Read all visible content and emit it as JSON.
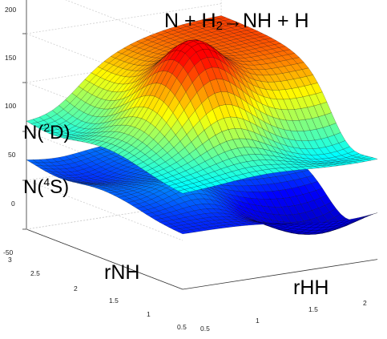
{
  "chart_data": {
    "type": "surface",
    "title": "N + H2→NH + H",
    "title_parts": {
      "reactant": "N + H",
      "sub": "2",
      "arrow_products": "→NH + H"
    },
    "surfaces": [
      {
        "label_base": "N(",
        "label_sup": "2",
        "label_state": "D)"
      },
      {
        "label_base": "N(",
        "label_sup": "4",
        "label_state": "S)"
      }
    ],
    "xlabel": "rNH",
    "ylabel": "rHH",
    "xlim": [
      0.5,
      3
    ],
    "ylim": [
      0.5,
      2.2
    ],
    "zlim": [
      -50,
      200
    ],
    "z_ticks": [
      "200",
      "150",
      "100",
      "50",
      "0",
      "-50"
    ],
    "x_ticks": [
      "3",
      "2.5",
      "2",
      "1.5",
      "1",
      "0.5"
    ],
    "y_ticks": [
      "0.5",
      "1",
      "1.5",
      "2"
    ],
    "colormap": [
      "#00008f",
      "#0000ff",
      "#00ffff",
      "#ffff00",
      "#ff0000"
    ]
  }
}
